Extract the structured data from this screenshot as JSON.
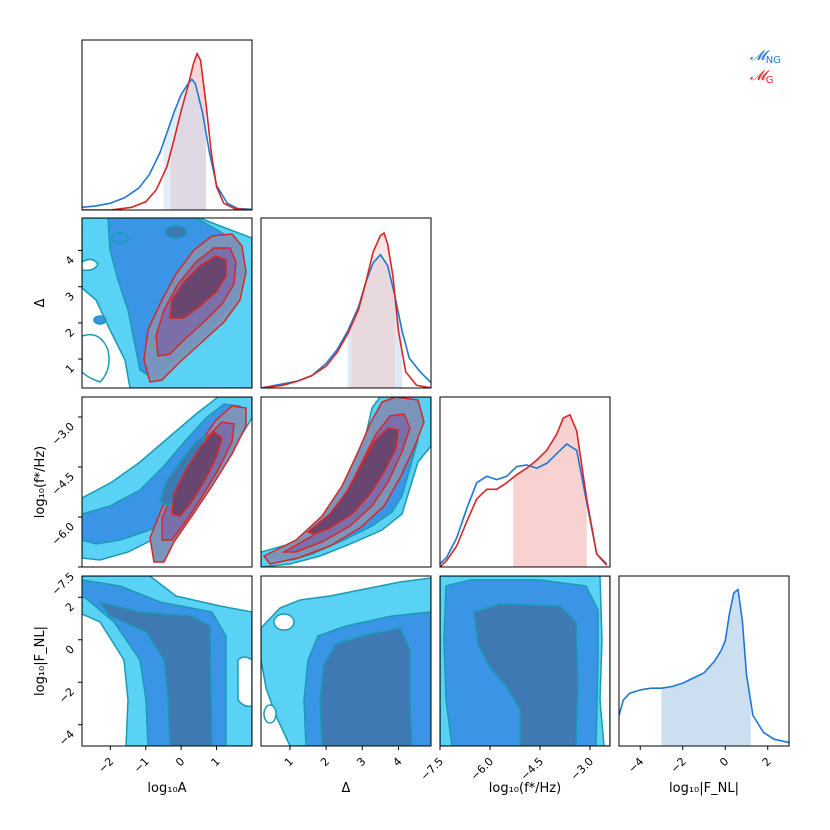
{
  "chart_data": {
    "type": "corner",
    "title": "",
    "legend": {
      "placement": "top-right",
      "entries": [
        {
          "label": "𝓜",
          "sub": "NG",
          "color": "#1f77d4"
        },
        {
          "label": "𝓜",
          "sub": "G",
          "color": "#d62728"
        }
      ]
    },
    "colors": {
      "ng_line": "#1f77d4",
      "ng_band": "#c6dbef",
      "g_line": "#d62728",
      "g_band": "#f6c5c5",
      "contour_1": "#5ad2f5",
      "contour_2": "#3a95e6",
      "contour_3": "#3f79b4",
      "contour_edge": "#1a9bb4"
    },
    "parameters": [
      {
        "id": "logA",
        "axis_label": "log₁₀A",
        "range": [
          -2.8,
          2.0
        ],
        "ticks": [
          -2,
          -1,
          0,
          1
        ],
        "tick_labels": [
          "−2",
          "−1",
          "0",
          "1"
        ]
      },
      {
        "id": "Delta",
        "axis_label": "Δ",
        "range": [
          0.2,
          4.9
        ],
        "ticks": [
          1,
          2,
          3,
          4
        ],
        "tick_labels": [
          "1",
          "2",
          "3",
          "4"
        ]
      },
      {
        "id": "logf",
        "axis_label": "log₁₀(f*/Hz)",
        "range": [
          -7.5,
          -2.4
        ],
        "ticks": [
          -7.5,
          -6.0,
          -4.5,
          -3.0
        ],
        "tick_labels": [
          "−7.5",
          "−6.0",
          "−4.5",
          "−3.0"
        ]
      },
      {
        "id": "logFNL",
        "axis_label": "log₁₀|F_NL|",
        "range": [
          -5.0,
          3.0
        ],
        "ticks": [
          -4,
          -2,
          0,
          2
        ],
        "tick_labels": [
          "−4",
          "−2",
          "0",
          "2"
        ]
      }
    ],
    "marginals": [
      {
        "param": "logA",
        "ng": {
          "x": [
            -2.8,
            -2.4,
            -2.0,
            -1.6,
            -1.2,
            -0.9,
            -0.6,
            -0.4,
            -0.2,
            0.0,
            0.2,
            0.3,
            0.4,
            0.6,
            0.8,
            1.0,
            1.3,
            1.6,
            2.0
          ],
          "y": [
            0.02,
            0.03,
            0.05,
            0.09,
            0.16,
            0.26,
            0.42,
            0.57,
            0.72,
            0.85,
            0.93,
            0.96,
            0.93,
            0.72,
            0.42,
            0.18,
            0.05,
            0.01,
            0.005
          ],
          "band": [
            -0.5,
            0.7
          ]
        },
        "g": {
          "x": [
            -2.8,
            -2.0,
            -1.4,
            -1.0,
            -0.7,
            -0.4,
            -0.2,
            0.0,
            0.2,
            0.35,
            0.45,
            0.55,
            0.7,
            0.85,
            1.0,
            1.2,
            1.5,
            2.0
          ],
          "y": [
            0.0,
            0.0,
            0.02,
            0.06,
            0.15,
            0.32,
            0.52,
            0.73,
            0.92,
            1.08,
            1.15,
            1.1,
            0.78,
            0.42,
            0.17,
            0.05,
            0.01,
            0.0
          ],
          "band": [
            -0.3,
            0.7
          ]
        }
      },
      {
        "param": "Delta",
        "ng": {
          "x": [
            0.2,
            0.8,
            1.2,
            1.6,
            2.0,
            2.3,
            2.6,
            2.9,
            3.1,
            3.3,
            3.5,
            3.7,
            3.9,
            4.1,
            4.3,
            4.6,
            4.9
          ],
          "y": [
            0.0,
            0.03,
            0.05,
            0.09,
            0.18,
            0.28,
            0.42,
            0.6,
            0.78,
            0.92,
            0.98,
            0.9,
            0.68,
            0.42,
            0.22,
            0.12,
            0.04
          ],
          "band": [
            2.6,
            4.1
          ]
        },
        "g": {
          "x": [
            0.2,
            0.8,
            1.2,
            1.6,
            2.0,
            2.3,
            2.6,
            2.9,
            3.1,
            3.3,
            3.5,
            3.6,
            3.7,
            3.85,
            4.0,
            4.2,
            4.5,
            4.9
          ],
          "y": [
            0.0,
            0.02,
            0.05,
            0.09,
            0.16,
            0.26,
            0.4,
            0.58,
            0.78,
            1.0,
            1.12,
            1.14,
            1.06,
            0.82,
            0.42,
            0.12,
            0.02,
            0.0
          ],
          "band": [
            2.7,
            3.9
          ]
        }
      },
      {
        "param": "logf",
        "ng": {
          "x": [
            -7.5,
            -7.3,
            -7.0,
            -6.7,
            -6.4,
            -6.1,
            -5.8,
            -5.5,
            -5.2,
            -4.9,
            -4.6,
            -4.3,
            -4.0,
            -3.7,
            -3.4,
            -3.1,
            -2.8,
            -2.5
          ],
          "y": [
            0.02,
            0.06,
            0.18,
            0.36,
            0.52,
            0.56,
            0.54,
            0.56,
            0.62,
            0.63,
            0.61,
            0.64,
            0.7,
            0.76,
            0.72,
            0.4,
            0.08,
            0.02
          ],
          "band": [
            -5.3,
            -3.1
          ]
        },
        "g": {
          "x": [
            -7.5,
            -7.3,
            -7.0,
            -6.7,
            -6.4,
            -6.1,
            -5.8,
            -5.5,
            -5.2,
            -4.9,
            -4.6,
            -4.3,
            -4.0,
            -3.8,
            -3.6,
            -3.4,
            -3.1,
            -2.8,
            -2.5
          ],
          "y": [
            0.0,
            0.04,
            0.13,
            0.28,
            0.42,
            0.48,
            0.48,
            0.52,
            0.57,
            0.61,
            0.66,
            0.72,
            0.82,
            0.92,
            0.94,
            0.84,
            0.42,
            0.08,
            0.01
          ],
          "band": [
            -5.3,
            -3.1
          ]
        }
      },
      {
        "param": "logFNL",
        "ng": {
          "x": [
            -5.0,
            -4.8,
            -4.5,
            -4.0,
            -3.5,
            -3.0,
            -2.5,
            -2.0,
            -1.5,
            -1.0,
            -0.5,
            -0.2,
            0.0,
            0.2,
            0.4,
            0.6,
            0.8,
            1.0,
            1.3,
            1.8,
            2.3,
            3.0
          ],
          "y": [
            0.18,
            0.27,
            0.31,
            0.33,
            0.34,
            0.34,
            0.35,
            0.37,
            0.4,
            0.43,
            0.5,
            0.56,
            0.62,
            0.78,
            0.9,
            0.92,
            0.74,
            0.42,
            0.18,
            0.08,
            0.04,
            0.02
          ],
          "band": [
            -3.0,
            1.2
          ]
        }
      }
    ],
    "joint_panels": [
      {
        "x_param": "logA",
        "y_param": "Delta",
        "series": [
          "NG",
          "G"
        ]
      },
      {
        "x_param": "logA",
        "y_param": "logf",
        "series": [
          "NG",
          "G"
        ]
      },
      {
        "x_param": "Delta",
        "y_param": "logf",
        "series": [
          "NG",
          "G"
        ]
      },
      {
        "x_param": "logA",
        "y_param": "logFNL",
        "series": [
          "NG"
        ]
      },
      {
        "x_param": "Delta",
        "y_param": "logFNL",
        "series": [
          "NG"
        ]
      },
      {
        "x_param": "logf",
        "y_param": "logFNL",
        "series": [
          "NG"
        ]
      }
    ]
  }
}
